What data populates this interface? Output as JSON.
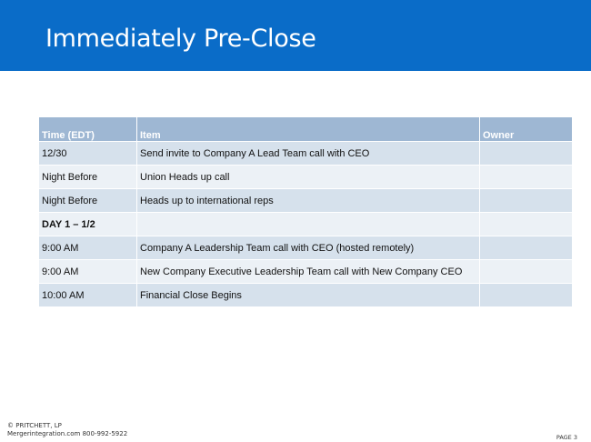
{
  "header": {
    "title": "Immediately Pre-Close",
    "color": "#0a6cc8"
  },
  "table": {
    "columns": [
      "Time (EDT)",
      "Item",
      "Owner"
    ],
    "rows": [
      {
        "time": "12/30",
        "item": "Send invite to Company A Lead Team call with CEO",
        "owner": "",
        "bold": false
      },
      {
        "time": " Night Before",
        "item": "Union Heads up call",
        "owner": "",
        "bold": false
      },
      {
        "time": "Night Before",
        "item": "Heads up to international reps",
        "owner": "",
        "bold": false
      },
      {
        "time": "DAY 1 – 1/2",
        "item": "",
        "owner": "",
        "bold": true
      },
      {
        "time": "9:00 AM",
        "item": "Company A Leadership Team call with CEO (hosted remotely)",
        "owner": "",
        "bold": false
      },
      {
        "time": "9:00 AM",
        "item": "New Company Executive Leadership Team call with New Company CEO",
        "owner": "",
        "bold": false
      },
      {
        "time": "10:00 AM",
        "item": "Financial Close Begins",
        "owner": "",
        "bold": false
      }
    ]
  },
  "footer": {
    "company": "© PRITCHETT, LP",
    "contact": "Mergerintegration.com 800-992-5922",
    "page": "PAGE 3"
  }
}
